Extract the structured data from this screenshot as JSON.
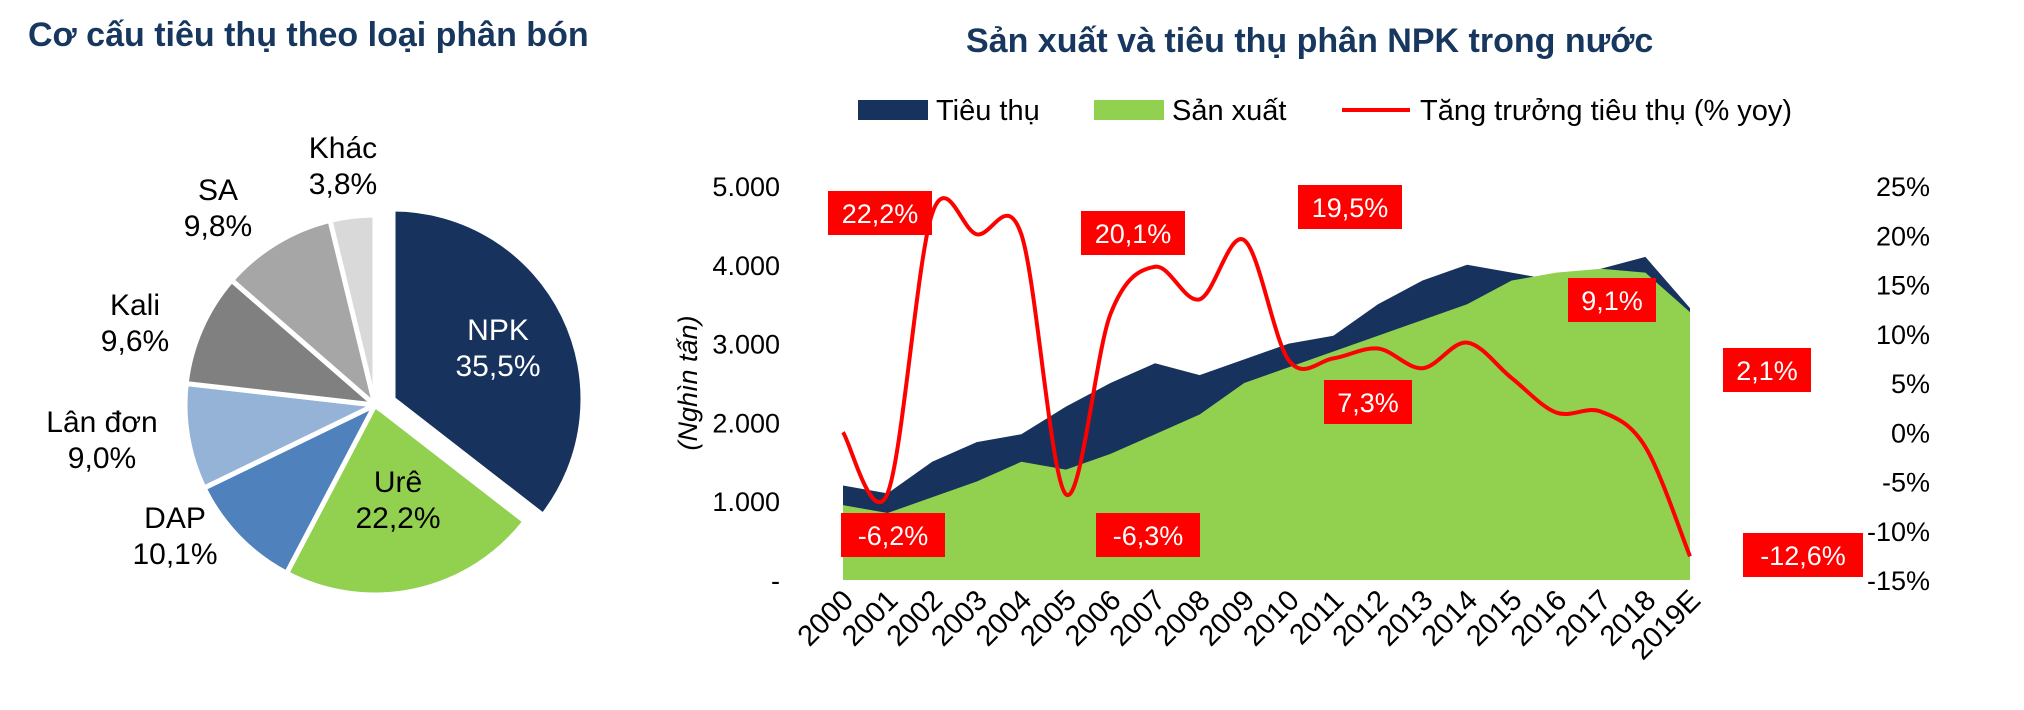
{
  "colors": {
    "title": "#17375e",
    "consumption": "#17325c",
    "production": "#92d050",
    "growth": "#ff0000",
    "label_bg": "#ff0000",
    "label_text": "#ffffff",
    "axis_text": "#000000"
  },
  "chart_data": [
    {
      "type": "pie",
      "title": "Cơ cấu tiêu thụ theo loại phân bón",
      "slices": [
        {
          "name": "NPK",
          "value": 35.5,
          "label": "35,5%",
          "color": "#17325c",
          "exploded": true
        },
        {
          "name": "Urê",
          "value": 22.2,
          "label": "22,2%",
          "color": "#92d050"
        },
        {
          "name": "DAP",
          "value": 10.1,
          "label": "10,1%",
          "color": "#4f81bd"
        },
        {
          "name": "Lân đơn",
          "value": 9.0,
          "label": "9,0%",
          "color": "#95b3d7"
        },
        {
          "name": "Kali",
          "value": 9.6,
          "label": "9,6%",
          "color": "#808080"
        },
        {
          "name": "SA",
          "value": 9.8,
          "label": "9,8%",
          "color": "#a6a6a6"
        },
        {
          "name": "Khác",
          "value": 3.8,
          "label": "3,8%",
          "color": "#d9d9d9"
        }
      ]
    },
    {
      "type": "area",
      "title": "Sản xuất và tiêu thụ phân NPK trong nước",
      "ylabel": "(Nghìn tấn)",
      "x": [
        "2000",
        "2001",
        "2002",
        "2003",
        "2004",
        "2005",
        "2006",
        "2007",
        "2008",
        "2009",
        "2010",
        "2011",
        "2012",
        "2013",
        "2014",
        "2015",
        "2016",
        "2017",
        "2018",
        "2019E"
      ],
      "series": [
        {
          "name": "Tiêu thụ",
          "type": "area",
          "axis": "left",
          "values": [
            1200,
            1100,
            1500,
            1750,
            1850,
            2200,
            2500,
            2750,
            2600,
            2800,
            3000,
            3100,
            3500,
            3800,
            4000,
            3900,
            3800,
            3950,
            4100,
            3450
          ]
        },
        {
          "name": "Sản xuất",
          "type": "area",
          "axis": "left",
          "values": [
            950,
            850,
            1050,
            1250,
            1500,
            1400,
            1600,
            1850,
            2100,
            2500,
            2700,
            2900,
            3100,
            3300,
            3500,
            3800,
            3900,
            3950,
            3900,
            3400
          ]
        },
        {
          "name": "Tăng trưởng tiêu thụ (% yoy)",
          "type": "line",
          "axis": "right",
          "values": [
            0.0,
            -6.2,
            22.2,
            20.1,
            20.1,
            -6.3,
            12.0,
            16.8,
            13.5,
            19.5,
            7.3,
            7.5,
            8.5,
            6.5,
            9.1,
            5.5,
            2.0,
            2.1,
            -1.5,
            -12.6
          ]
        }
      ],
      "yleft": {
        "range": [
          0,
          5000
        ],
        "ticks": [
          "-",
          "1.000",
          "2.000",
          "3.000",
          "4.000",
          "5.000"
        ]
      },
      "yright": {
        "range": [
          -15,
          25
        ],
        "ticks": [
          "-15%",
          "-10%",
          "-5%",
          "0%",
          "5%",
          "10%",
          "15%",
          "20%",
          "25%"
        ]
      },
      "legend": {
        "position": "top"
      },
      "annotations": [
        {
          "index": 1,
          "text": "22,2%"
        },
        {
          "index": 1,
          "text": "-6,2%"
        },
        {
          "index": 5,
          "text": "20,1%"
        },
        {
          "index": 5,
          "text": "-6,3%"
        },
        {
          "index": 9,
          "text": "19,5%"
        },
        {
          "index": 10,
          "text": "7,3%"
        },
        {
          "index": 14,
          "text": "9,1%"
        },
        {
          "index": 17,
          "text": "2,1%"
        },
        {
          "index": 19,
          "text": "-12,6%"
        }
      ],
      "grid": false
    }
  ]
}
